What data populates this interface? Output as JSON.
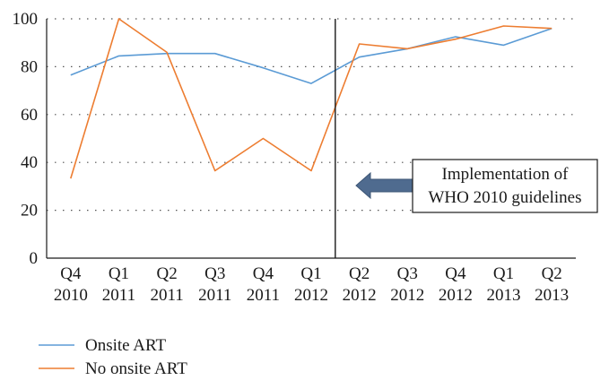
{
  "chart_data": {
    "type": "line",
    "title": "",
    "xlabel": "",
    "ylabel": "",
    "categories": [
      [
        "Q4",
        "2010"
      ],
      [
        "Q1",
        "2011"
      ],
      [
        "Q2",
        "2011"
      ],
      [
        "Q3",
        "2011"
      ],
      [
        "Q4",
        "2011"
      ],
      [
        "Q1",
        "2012"
      ],
      [
        "Q2",
        "2012"
      ],
      [
        "Q3",
        "2012"
      ],
      [
        "Q4",
        "2012"
      ],
      [
        "Q1",
        "2013"
      ],
      [
        "Q2",
        "2013"
      ]
    ],
    "ylim": [
      0,
      100
    ],
    "yticks": [
      0,
      20,
      40,
      60,
      80,
      100
    ],
    "grid": "horizontal dotted",
    "legend_placement": "bottom-left",
    "series": [
      {
        "name": "Onsite ART",
        "color": "#5b9bd5",
        "values": [
          76.5,
          84.5,
          85.5,
          85.5,
          79.5,
          73,
          84,
          87.5,
          92.5,
          89,
          96
        ]
      },
      {
        "name": "No onsite ART",
        "color": "#ed7d31",
        "values": [
          33.3,
          100,
          86,
          36.5,
          50,
          36.5,
          89.5,
          87.5,
          91.5,
          97,
          96
        ]
      }
    ],
    "marker_line": {
      "category_index": 6,
      "color": "#1a1a1a"
    },
    "annotation": {
      "lines": [
        "Implementation of",
        "WHO 2010 guidelines"
      ],
      "arrow_color": "#4f6b8f"
    }
  }
}
